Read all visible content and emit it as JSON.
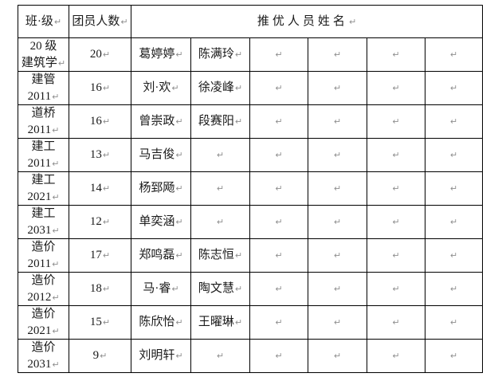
{
  "marks": {
    "cell_return": "↵"
  },
  "colors": {
    "border": "#000000",
    "text": "#1a1a1a",
    "formatting_mark": "#8f8f8f",
    "background": "#ffffff"
  },
  "table": {
    "header": {
      "class_label": "班·级",
      "count_label": "团员人数",
      "names_label": "推优人员姓名"
    },
    "rows": [
      {
        "class_line1": "20 级",
        "class_line2": "建筑学",
        "count": "20",
        "names": [
          "葛婷婷",
          "陈满玲",
          "",
          "",
          "",
          ""
        ]
      },
      {
        "class_line1": "建管",
        "class_line2": "2011",
        "count": "16",
        "names": [
          "刘·欢",
          "徐凌峰",
          "",
          "",
          "",
          ""
        ]
      },
      {
        "class_line1": "道桥",
        "class_line2": "2011",
        "count": "16",
        "names": [
          "曾崇政",
          "段赛阳",
          "",
          "",
          "",
          ""
        ]
      },
      {
        "class_line1": "建工",
        "class_line2": "2011",
        "count": "13",
        "names": [
          "马吉俊",
          "",
          "",
          "",
          "",
          ""
        ]
      },
      {
        "class_line1": "建工",
        "class_line2": "2021",
        "count": "14",
        "names": [
          "杨郅飏",
          "",
          "",
          "",
          "",
          ""
        ]
      },
      {
        "class_line1": "建工",
        "class_line2": "2031",
        "count": "12",
        "names": [
          "单奕涵",
          "",
          "",
          "",
          "",
          ""
        ]
      },
      {
        "class_line1": "造价",
        "class_line2": "2011",
        "count": "17",
        "names": [
          "郑鸣磊",
          "陈志恒",
          "",
          "",
          "",
          ""
        ]
      },
      {
        "class_line1": "造价",
        "class_line2": "2012",
        "count": "18",
        "names": [
          "马·睿",
          "陶文慧",
          "",
          "",
          "",
          ""
        ]
      },
      {
        "class_line1": "造价",
        "class_line2": "2021",
        "count": "15",
        "names": [
          "陈欣怡",
          "王曜琳",
          "",
          "",
          "",
          ""
        ]
      },
      {
        "class_line1": "造价",
        "class_line2": "2031",
        "count": "9",
        "names": [
          "刘明轩",
          "",
          "",
          "",
          "",
          ""
        ]
      }
    ]
  }
}
